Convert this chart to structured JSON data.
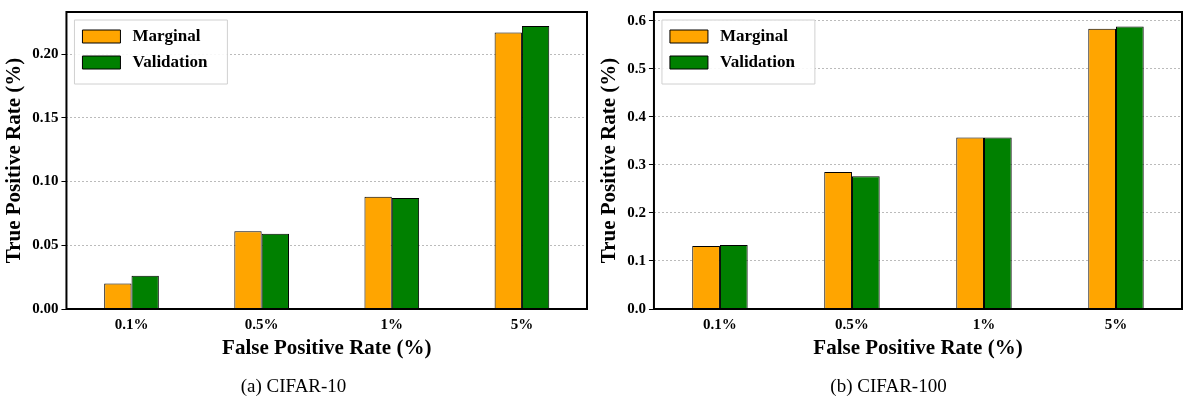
{
  "chart_data": [
    {
      "type": "bar",
      "title": "(a) CIFAR-10",
      "xlabel": "False Positive Rate (%)",
      "ylabel": "True Positive Rate (%)",
      "categories": [
        "0.1%",
        "0.5%",
        "1%",
        "5%"
      ],
      "series": [
        {
          "name": "Marginal",
          "color": "#ffa500",
          "values": [
            0.02,
            0.061,
            0.088,
            0.217
          ]
        },
        {
          "name": "Validation",
          "color": "#008000",
          "values": [
            0.026,
            0.059,
            0.087,
            0.222
          ]
        }
      ],
      "ylim": [
        0,
        0.233
      ],
      "yticks": [
        {
          "value": 0,
          "label": "0.00"
        },
        {
          "value": 0.05,
          "label": "0.05"
        },
        {
          "value": 0.1,
          "label": "0.10"
        },
        {
          "value": 0.15,
          "label": "0.15"
        },
        {
          "value": 0.2,
          "label": "0.20"
        }
      ],
      "grid": "y",
      "legend": "top left"
    },
    {
      "type": "bar",
      "title": "(b) CIFAR-100",
      "xlabel": "False Positive Rate (%)",
      "ylabel": "True Positive Rate (%)",
      "categories": [
        "0.1%",
        "0.5%",
        "1%",
        "5%"
      ],
      "series": [
        {
          "name": "Marginal",
          "color": "#ffa500",
          "values": [
            0.131,
            0.285,
            0.357,
            0.583
          ]
        },
        {
          "name": "Validation",
          "color": "#008000",
          "values": [
            0.133,
            0.276,
            0.357,
            0.588
          ]
        }
      ],
      "ylim": [
        0,
        0.618
      ],
      "yticks": [
        {
          "value": 0,
          "label": "0.0"
        },
        {
          "value": 0.1,
          "label": "0.1"
        },
        {
          "value": 0.2,
          "label": "0.2"
        },
        {
          "value": 0.3,
          "label": "0.3"
        },
        {
          "value": 0.4,
          "label": "0.4"
        },
        {
          "value": 0.5,
          "label": "0.5"
        },
        {
          "value": 0.6,
          "label": "0.6"
        }
      ],
      "grid": "y",
      "legend": "top left"
    }
  ]
}
